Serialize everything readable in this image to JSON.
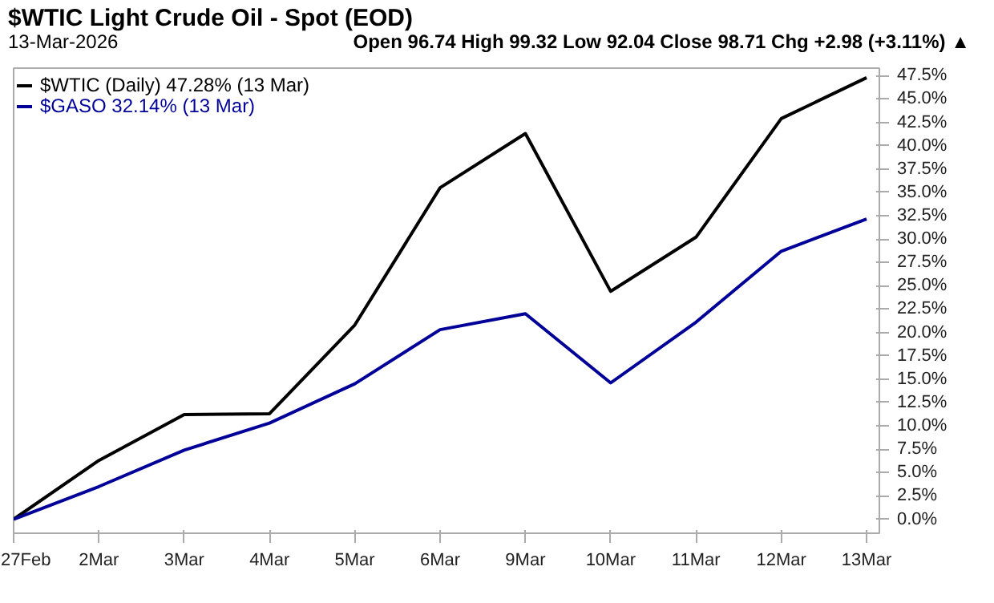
{
  "chart_data": {
    "type": "line",
    "title": "$WTIC Light Crude Oil - Spot (EOD)",
    "subtitle": "13-Mar-2026",
    "annotations": [
      "Open 96.74  High 99.32  Low 92.04  Close 98.71  Chg +2.98 (+3.11%) ▲"
    ],
    "categories": [
      "27Feb",
      "2Mar",
      "3Mar",
      "4Mar",
      "5Mar",
      "6Mar",
      "9Mar",
      "10Mar",
      "11Mar",
      "12Mar",
      "13Mar"
    ],
    "series": [
      {
        "name": "$WTIC (Daily) 47.28% (13 Mar)",
        "color": "#000000",
        "values": [
          0,
          6.3,
          11.2,
          11.3,
          20.8,
          35.5,
          41.3,
          24.4,
          30.2,
          42.9,
          47.28
        ]
      },
      {
        "name": "$GASO 32.14% (13 Mar)",
        "color": "#000099",
        "values": [
          0,
          3.5,
          7.4,
          10.3,
          14.5,
          20.3,
          22.0,
          14.6,
          21.1,
          28.7,
          32.14
        ]
      }
    ],
    "ylim": [
      -1.5,
      48.3
    ],
    "yticks": [
      {
        "value": 0,
        "label": "0.0%"
      },
      {
        "value": 2.5,
        "label": "2.5%"
      },
      {
        "value": 5,
        "label": "5.0%"
      },
      {
        "value": 7.5,
        "label": "7.5%"
      },
      {
        "value": 10,
        "label": "10.0%"
      },
      {
        "value": 12.5,
        "label": "12.5%"
      },
      {
        "value": 15,
        "label": "15.0%"
      },
      {
        "value": 17.5,
        "label": "17.5%"
      },
      {
        "value": 20,
        "label": "20.0%"
      },
      {
        "value": 22.5,
        "label": "22.5%"
      },
      {
        "value": 25,
        "label": "25.0%"
      },
      {
        "value": 27.5,
        "label": "27.5%"
      },
      {
        "value": 30,
        "label": "30.0%"
      },
      {
        "value": 32.5,
        "label": "32.5%"
      },
      {
        "value": 35,
        "label": "35.0%"
      },
      {
        "value": 37.5,
        "label": "37.5%"
      },
      {
        "value": 40,
        "label": "40.0%"
      },
      {
        "value": 42.5,
        "label": "42.5%"
      },
      {
        "value": 45,
        "label": "45.0%"
      },
      {
        "value": 47.5,
        "label": "47.5%"
      }
    ],
    "grid": false,
    "legend": "top left",
    "marker": "none",
    "line_style": "solid"
  }
}
